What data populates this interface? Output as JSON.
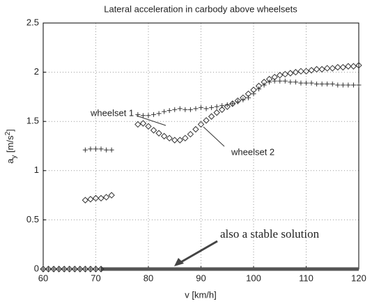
{
  "chart_data": {
    "type": "scatter",
    "title": "Lateral acceleration in carbody above wheelsets",
    "xlabel": "v [km/h]",
    "ylabel": [
      "a",
      "y",
      " [m/s",
      "2",
      "]"
    ],
    "xlim": [
      60,
      120
    ],
    "xticks": [
      60,
      70,
      80,
      90,
      100,
      110,
      120
    ],
    "ylim": [
      0,
      2.5
    ],
    "yticks": [
      0,
      0.5,
      1,
      1.5,
      2,
      2.5
    ],
    "grid": true,
    "series": [
      {
        "name": "wheelset 1",
        "marker": "plus",
        "color": "#333",
        "x": [
          60,
          61,
          62,
          63,
          64,
          65,
          66,
          67,
          68,
          69,
          70,
          71,
          68,
          69,
          70,
          71,
          72,
          73,
          78,
          79,
          80,
          81,
          82,
          83,
          84,
          85,
          86,
          87,
          88,
          89,
          90,
          91,
          92,
          93,
          94,
          95,
          96,
          97,
          98,
          99,
          100,
          101,
          102,
          103,
          104,
          105,
          106,
          107,
          108,
          109,
          110,
          111,
          112,
          113,
          114,
          115,
          116,
          117,
          118,
          119,
          120
        ],
        "values": [
          0,
          0,
          0,
          0,
          0,
          0,
          0,
          0,
          0,
          0,
          0,
          0,
          1.21,
          1.22,
          1.22,
          1.22,
          1.21,
          1.21,
          1.57,
          1.56,
          1.56,
          1.57,
          1.58,
          1.6,
          1.61,
          1.62,
          1.63,
          1.62,
          1.62,
          1.63,
          1.64,
          1.63,
          1.64,
          1.65,
          1.66,
          1.67,
          1.68,
          1.7,
          1.72,
          1.74,
          1.78,
          1.83,
          1.87,
          1.9,
          1.91,
          1.91,
          1.91,
          1.9,
          1.9,
          1.89,
          1.89,
          1.89,
          1.88,
          1.88,
          1.88,
          1.88,
          1.87,
          1.87,
          1.87,
          1.87,
          1.87
        ]
      },
      {
        "name": "wheelset 2",
        "marker": "diamond",
        "color": "#333",
        "x": [
          60,
          61,
          62,
          63,
          64,
          65,
          66,
          67,
          68,
          69,
          70,
          71,
          68,
          69,
          70,
          71,
          72,
          73,
          78,
          79,
          80,
          81,
          82,
          83,
          84,
          85,
          86,
          87,
          88,
          89,
          90,
          91,
          92,
          93,
          94,
          95,
          96,
          97,
          98,
          99,
          100,
          101,
          102,
          103,
          104,
          105,
          106,
          107,
          108,
          109,
          110,
          111,
          112,
          113,
          114,
          115,
          116,
          117,
          118,
          119,
          120
        ],
        "values": [
          0,
          0,
          0,
          0,
          0,
          0,
          0,
          0,
          0,
          0,
          0,
          0,
          0.7,
          0.71,
          0.72,
          0.72,
          0.73,
          0.75,
          1.47,
          1.48,
          1.45,
          1.41,
          1.38,
          1.35,
          1.33,
          1.31,
          1.31,
          1.33,
          1.37,
          1.42,
          1.47,
          1.51,
          1.55,
          1.59,
          1.62,
          1.65,
          1.68,
          1.71,
          1.74,
          1.78,
          1.82,
          1.86,
          1.9,
          1.93,
          1.95,
          1.97,
          1.98,
          1.99,
          2.0,
          2.01,
          2.01,
          2.02,
          2.03,
          2.03,
          2.04,
          2.04,
          2.05,
          2.05,
          2.06,
          2.06,
          2.07
        ]
      }
    ],
    "stable_solution": {
      "x": [
        71,
        120
      ],
      "values": [
        0,
        0
      ],
      "color": "#555"
    },
    "annotations": [
      "wheelset 1",
      "wheelset 2",
      "also a stable solution"
    ]
  }
}
